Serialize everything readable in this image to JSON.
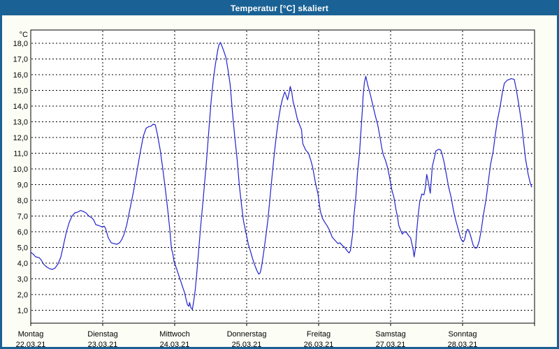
{
  "window": {
    "title": "Temperatur [°C] skaliert"
  },
  "colors": {
    "accent": "#1A6295",
    "title_text": "#FFFFFF",
    "content_bg": "#FCFDF5",
    "plot_bg": "#FFFFFF",
    "plot_border": "#000000",
    "grid": "#000000",
    "line": "#2222CC",
    "label_text": "#000000"
  },
  "chart_data": {
    "type": "line",
    "title": "Temperatur [°C] skaliert",
    "grid": "dashed",
    "legend": "none",
    "y_axis": {
      "unit_label": "°C",
      "min": 1.0,
      "max": 18.0,
      "tick_step": 1.0,
      "tick_labels_top_to_bottom": [
        "18,0",
        "17,0",
        "16,0",
        "15,0",
        "14,0",
        "13,0",
        "12,0",
        "11,0",
        "10,0",
        "9,0",
        "8,0",
        "7,0",
        "6,0",
        "5,0",
        "4,0",
        "3,0",
        "2,0",
        "1,0"
      ]
    },
    "x_axis": {
      "range_days": [
        0,
        7
      ],
      "days": [
        {
          "name": "Montag",
          "date": "22.03.21"
        },
        {
          "name": "Dienstag",
          "date": "23.03.21"
        },
        {
          "name": "Mittwoch",
          "date": "24.03.21"
        },
        {
          "name": "Donnerstag",
          "date": "25.03.21"
        },
        {
          "name": "Freitag",
          "date": "26.03.21"
        },
        {
          "name": "Samstag",
          "date": "27.03.21"
        },
        {
          "name": "Sonntag",
          "date": "28.03.21"
        }
      ]
    },
    "series": [
      {
        "name": "Temperatur",
        "color": "#2222CC",
        "points": [
          [
            0.0,
            4.7
          ],
          [
            0.039,
            4.55
          ],
          [
            0.068,
            4.4
          ],
          [
            0.117,
            4.35
          ],
          [
            0.146,
            4.2
          ],
          [
            0.185,
            3.9
          ],
          [
            0.224,
            3.75
          ],
          [
            0.262,
            3.65
          ],
          [
            0.301,
            3.6
          ],
          [
            0.34,
            3.7
          ],
          [
            0.379,
            3.95
          ],
          [
            0.418,
            4.4
          ],
          [
            0.457,
            5.2
          ],
          [
            0.496,
            6.0
          ],
          [
            0.535,
            6.6
          ],
          [
            0.574,
            7.0
          ],
          [
            0.612,
            7.2
          ],
          [
            0.651,
            7.25
          ],
          [
            0.69,
            7.35
          ],
          [
            0.729,
            7.3
          ],
          [
            0.768,
            7.2
          ],
          [
            0.807,
            7.0
          ],
          [
            0.846,
            6.9
          ],
          [
            0.875,
            6.75
          ],
          [
            0.904,
            6.45
          ],
          [
            0.943,
            6.4
          ],
          [
            0.992,
            6.3
          ],
          [
            1.021,
            6.35
          ],
          [
            1.04,
            6.2
          ],
          [
            1.079,
            5.6
          ],
          [
            1.118,
            5.3
          ],
          [
            1.157,
            5.25
          ],
          [
            1.196,
            5.2
          ],
          [
            1.235,
            5.3
          ],
          [
            1.264,
            5.5
          ],
          [
            1.293,
            5.8
          ],
          [
            1.332,
            6.4
          ],
          [
            1.381,
            7.5
          ],
          [
            1.429,
            8.6
          ],
          [
            1.478,
            9.9
          ],
          [
            1.527,
            11.2
          ],
          [
            1.565,
            12.1
          ],
          [
            1.604,
            12.6
          ],
          [
            1.643,
            12.7
          ],
          [
            1.672,
            12.72
          ],
          [
            1.701,
            12.85
          ],
          [
            1.731,
            12.8
          ],
          [
            1.76,
            12.2
          ],
          [
            1.799,
            11.2
          ],
          [
            1.838,
            9.9
          ],
          [
            1.876,
            8.5
          ],
          [
            1.906,
            7.3
          ],
          [
            1.935,
            6.0
          ],
          [
            1.954,
            4.95
          ],
          [
            1.974,
            4.6
          ],
          [
            1.993,
            4.05
          ],
          [
            2.022,
            3.7
          ],
          [
            2.051,
            3.3
          ],
          [
            2.081,
            2.9
          ],
          [
            2.11,
            2.5
          ],
          [
            2.139,
            2.1
          ],
          [
            2.158,
            1.7
          ],
          [
            2.178,
            1.35
          ],
          [
            2.197,
            1.25
          ],
          [
            2.207,
            1.5
          ],
          [
            2.226,
            1.15
          ],
          [
            2.246,
            1.05
          ],
          [
            2.265,
            1.6
          ],
          [
            2.285,
            2.3
          ],
          [
            2.304,
            3.2
          ],
          [
            2.333,
            4.8
          ],
          [
            2.362,
            6.4
          ],
          [
            2.392,
            7.9
          ],
          [
            2.421,
            9.4
          ],
          [
            2.45,
            11.0
          ],
          [
            2.479,
            12.7
          ],
          [
            2.508,
            14.4
          ],
          [
            2.537,
            15.7
          ],
          [
            2.567,
            16.7
          ],
          [
            2.596,
            17.5
          ],
          [
            2.615,
            17.9
          ],
          [
            2.635,
            18.05
          ],
          [
            2.654,
            17.85
          ],
          [
            2.683,
            17.5
          ],
          [
            2.712,
            17.1
          ],
          [
            2.741,
            16.3
          ],
          [
            2.77,
            15.4
          ],
          [
            2.809,
            13.3
          ],
          [
            2.838,
            11.9
          ],
          [
            2.868,
            10.6
          ],
          [
            2.897,
            9.0
          ],
          [
            2.926,
            7.8
          ],
          [
            2.955,
            6.7
          ],
          [
            2.994,
            5.85
          ],
          [
            3.023,
            5.2
          ],
          [
            3.053,
            4.75
          ],
          [
            3.082,
            4.3
          ],
          [
            3.111,
            3.9
          ],
          [
            3.14,
            3.55
          ],
          [
            3.169,
            3.3
          ],
          [
            3.189,
            3.4
          ],
          [
            3.208,
            3.8
          ],
          [
            3.237,
            4.7
          ],
          [
            3.266,
            5.7
          ],
          [
            3.296,
            6.8
          ],
          [
            3.325,
            8.2
          ],
          [
            3.354,
            9.6
          ],
          [
            3.383,
            10.9
          ],
          [
            3.412,
            12.1
          ],
          [
            3.441,
            13.1
          ],
          [
            3.47,
            13.9
          ],
          [
            3.5,
            14.5
          ],
          [
            3.529,
            14.9
          ],
          [
            3.548,
            14.7
          ],
          [
            3.568,
            14.4
          ],
          [
            3.587,
            14.8
          ],
          [
            3.606,
            15.25
          ],
          [
            3.626,
            14.9
          ],
          [
            3.645,
            14.3
          ],
          [
            3.674,
            13.8
          ],
          [
            3.703,
            13.2
          ],
          [
            3.732,
            12.85
          ],
          [
            3.762,
            12.5
          ],
          [
            3.781,
            11.6
          ],
          [
            3.82,
            11.2
          ],
          [
            3.859,
            11.0
          ],
          [
            3.888,
            10.6
          ],
          [
            3.917,
            10.1
          ],
          [
            3.956,
            9.1
          ],
          [
            3.991,
            8.4
          ],
          [
            4.024,
            7.3
          ],
          [
            4.053,
            6.85
          ],
          [
            4.092,
            6.55
          ],
          [
            4.121,
            6.35
          ],
          [
            4.15,
            6.1
          ],
          [
            4.189,
            5.65
          ],
          [
            4.228,
            5.45
          ],
          [
            4.267,
            5.25
          ],
          [
            4.296,
            5.3
          ],
          [
            4.335,
            5.1
          ],
          [
            4.364,
            5.0
          ],
          [
            4.393,
            4.8
          ],
          [
            4.422,
            4.65
          ],
          [
            4.442,
            4.8
          ],
          [
            4.471,
            5.8
          ],
          [
            4.49,
            7.0
          ],
          [
            4.519,
            8.35
          ],
          [
            4.539,
            9.7
          ],
          [
            4.568,
            11.0
          ],
          [
            4.587,
            12.35
          ],
          [
            4.607,
            13.7
          ],
          [
            4.617,
            14.6
          ],
          [
            4.636,
            15.5
          ],
          [
            4.655,
            15.9
          ],
          [
            4.684,
            15.3
          ],
          [
            4.723,
            14.65
          ],
          [
            4.753,
            14.05
          ],
          [
            4.782,
            13.5
          ],
          [
            4.821,
            12.8
          ],
          [
            4.85,
            12.1
          ],
          [
            4.879,
            11.3
          ],
          [
            4.899,
            10.9
          ],
          [
            4.928,
            10.55
          ],
          [
            4.957,
            10.1
          ],
          [
            4.986,
            9.45
          ],
          [
            5.016,
            8.7
          ],
          [
            5.046,
            8.2
          ],
          [
            5.075,
            7.4
          ],
          [
            5.094,
            7.0
          ],
          [
            5.114,
            6.4
          ],
          [
            5.143,
            6.05
          ],
          [
            5.162,
            5.85
          ],
          [
            5.191,
            6.0
          ],
          [
            5.22,
            5.95
          ],
          [
            5.25,
            5.75
          ],
          [
            5.279,
            5.6
          ],
          [
            5.308,
            5.0
          ],
          [
            5.327,
            4.4
          ],
          [
            5.347,
            5.0
          ],
          [
            5.366,
            6.2
          ],
          [
            5.385,
            7.15
          ],
          [
            5.405,
            7.9
          ],
          [
            5.434,
            8.4
          ],
          [
            5.463,
            8.35
          ],
          [
            5.483,
            8.8
          ],
          [
            5.502,
            9.65
          ],
          [
            5.522,
            9.2
          ],
          [
            5.551,
            8.45
          ],
          [
            5.58,
            10.15
          ],
          [
            5.6,
            10.55
          ],
          [
            5.629,
            11.15
          ],
          [
            5.668,
            11.25
          ],
          [
            5.697,
            11.2
          ],
          [
            5.716,
            10.95
          ],
          [
            5.745,
            10.4
          ],
          [
            5.775,
            9.65
          ],
          [
            5.804,
            8.9
          ],
          [
            5.843,
            8.15
          ],
          [
            5.872,
            7.4
          ],
          [
            5.901,
            6.8
          ],
          [
            5.94,
            6.15
          ],
          [
            5.969,
            5.65
          ],
          [
            5.989,
            5.45
          ],
          [
            6.008,
            5.35
          ],
          [
            6.028,
            5.5
          ],
          [
            6.047,
            5.9
          ],
          [
            6.067,
            6.15
          ],
          [
            6.086,
            6.1
          ],
          [
            6.115,
            5.7
          ],
          [
            6.144,
            5.2
          ],
          [
            6.164,
            5.0
          ],
          [
            6.183,
            4.95
          ],
          [
            6.202,
            5.0
          ],
          [
            6.231,
            5.4
          ],
          [
            6.261,
            6.15
          ],
          [
            6.29,
            7.1
          ],
          [
            6.329,
            8.15
          ],
          [
            6.358,
            9.2
          ],
          [
            6.387,
            10.25
          ],
          [
            6.426,
            11.15
          ],
          [
            6.455,
            12.2
          ],
          [
            6.484,
            13.1
          ],
          [
            6.523,
            14.0
          ],
          [
            6.552,
            14.85
          ],
          [
            6.581,
            15.45
          ],
          [
            6.62,
            15.65
          ],
          [
            6.649,
            15.7
          ],
          [
            6.679,
            15.75
          ],
          [
            6.718,
            15.7
          ],
          [
            6.747,
            15.05
          ],
          [
            6.776,
            14.25
          ],
          [
            6.815,
            13.1
          ],
          [
            6.844,
            11.9
          ],
          [
            6.873,
            10.7
          ],
          [
            6.912,
            9.65
          ],
          [
            6.941,
            9.1
          ],
          [
            6.96,
            8.85
          ]
        ]
      }
    ]
  }
}
